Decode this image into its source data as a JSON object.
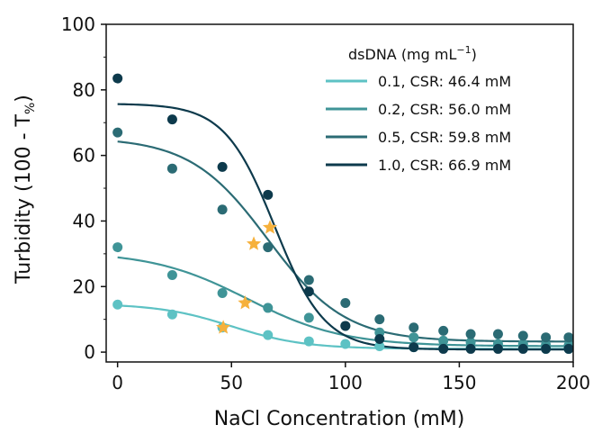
{
  "chart_data": {
    "type": "scatter",
    "xlabel": "NaCl Concentration (mM)",
    "ylabel": "Turbidity (100 - T%)",
    "ylabel_parts": {
      "main": "Turbidity (100 - T",
      "sub": "%",
      "close": ")"
    },
    "xlim": [
      -5,
      200
    ],
    "ylim": [
      -3,
      100
    ],
    "xticks": [
      0,
      50,
      100,
      150,
      200
    ],
    "yticks": [
      0,
      20,
      40,
      60,
      80,
      100
    ],
    "grid": false,
    "legend": {
      "placement": "top-right",
      "title_main": "dsDNA (mg mL",
      "title_sup": "−1",
      "title_close": ")"
    },
    "marker_color": "#f6b13c",
    "series": [
      {
        "name": "0.1, CSR: 46.4 mM",
        "color": "#5dc2c4",
        "x": [
          0,
          24,
          46,
          66,
          84,
          100,
          115,
          130,
          143,
          155,
          167,
          178,
          188,
          198
        ],
        "y": [
          14.5,
          11.5,
          7.5,
          5.2,
          3.3,
          2.5,
          1.8,
          1.5,
          1.3,
          1.2,
          1.2,
          1.1,
          1.0,
          1.0
        ],
        "fit": {
          "top": 14.8,
          "bottom": 1.0,
          "x50": 50,
          "k": 16
        },
        "star": [
          46.4,
          7.5
        ]
      },
      {
        "name": "0.2, CSR: 56.0 mM",
        "color": "#3f9497",
        "x": [
          0,
          24,
          46,
          66,
          84,
          100,
          115,
          130,
          143,
          155,
          167,
          178,
          188,
          198
        ],
        "y": [
          32,
          23.5,
          18,
          13.5,
          10.5,
          8,
          6,
          4.5,
          3.5,
          3,
          2.5,
          2.5,
          2.2,
          2
        ],
        "fit": {
          "top": 30.7,
          "bottom": 1.8,
          "x50": 57,
          "k": 21
        },
        "star": [
          56.0,
          15
        ]
      },
      {
        "name": "0.5, CSR: 59.8 mM",
        "color": "#2b6b74",
        "x": [
          0,
          24,
          46,
          66,
          84,
          100,
          115,
          130,
          143,
          155,
          167,
          178,
          188,
          198
        ],
        "y": [
          67,
          56,
          43.5,
          32,
          22,
          15,
          10,
          7.5,
          6.5,
          5.5,
          5.5,
          5,
          4.5,
          4.5
        ],
        "fit": {
          "top": 65.5,
          "bottom": 3.2,
          "x50": 66,
          "k": 17
        },
        "star": [
          59.8,
          33
        ]
      },
      {
        "name": "1.0, CSR: 66.9 mM",
        "color": "#0d3a4c",
        "x": [
          0,
          24,
          46,
          66,
          84,
          100,
          115,
          130,
          143,
          155,
          167,
          178,
          188,
          198
        ],
        "y": [
          83.5,
          71,
          56.5,
          48,
          18.5,
          8,
          4,
          1.5,
          1,
          1,
          1,
          1,
          1,
          1
        ],
        "fit": {
          "top": 75.8,
          "bottom": 0.8,
          "x50": 69,
          "k": 11
        },
        "star": [
          66.9,
          38
        ]
      }
    ]
  }
}
